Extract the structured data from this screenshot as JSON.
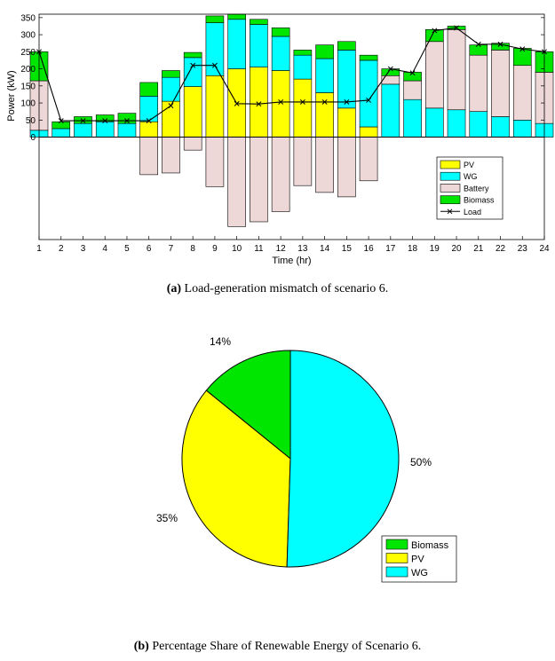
{
  "chart_data": [
    {
      "type": "bar",
      "subtype": "stacked-bar-with-line",
      "xlabel": "Time (hr)",
      "ylabel": "Power (kW)",
      "ylim": [
        -300,
        360
      ],
      "yticks": [
        0,
        50,
        100,
        150,
        200,
        250,
        300,
        350
      ],
      "categories": [
        "1",
        "2",
        "3",
        "4",
        "5",
        "6",
        "7",
        "8",
        "9",
        "10",
        "11",
        "12",
        "13",
        "14",
        "15",
        "16",
        "17",
        "18",
        "19",
        "20",
        "21",
        "22",
        "23",
        "24"
      ],
      "series": [
        {
          "name": "PV",
          "color": "#ffff00",
          "values": [
            0,
            0,
            0,
            0,
            0,
            45,
            105,
            148,
            180,
            200,
            205,
            195,
            170,
            130,
            85,
            30,
            0,
            0,
            0,
            0,
            0,
            0,
            0,
            0
          ]
        },
        {
          "name": "WG",
          "color": "#00ffff",
          "values": [
            20,
            25,
            40,
            45,
            40,
            75,
            70,
            85,
            155,
            145,
            125,
            100,
            70,
            100,
            170,
            195,
            155,
            110,
            85,
            80,
            75,
            60,
            50,
            40
          ]
        },
        {
          "name": "Battery",
          "color": "#eed7d7",
          "values": [
            145,
            0,
            0,
            0,
            0,
            -110,
            -105,
            -38,
            -145,
            -262,
            -248,
            -218,
            -142,
            -162,
            -175,
            -128,
            25,
            55,
            195,
            235,
            165,
            195,
            160,
            150
          ]
        },
        {
          "name": "Biomass",
          "color": "#00e600",
          "values": [
            85,
            20,
            20,
            20,
            30,
            40,
            20,
            15,
            20,
            15,
            15,
            25,
            15,
            40,
            25,
            15,
            20,
            25,
            35,
            10,
            30,
            20,
            50,
            60
          ]
        }
      ],
      "line": {
        "name": "Load",
        "values": [
          250,
          48,
          48,
          48,
          48,
          48,
          92,
          210,
          210,
          98,
          97,
          103,
          103,
          103,
          103,
          108,
          200,
          188,
          312,
          320,
          272,
          272,
          258,
          250
        ]
      },
      "legend": [
        "PV",
        "WG",
        "Battery",
        "Biomass",
        "Load"
      ],
      "legend_position": "lower-right",
      "caption_label": "(a)",
      "caption_text": "Load-generation mismatch of scenario 6."
    },
    {
      "type": "pie",
      "slices": [
        {
          "name": "Biomass",
          "value": 14,
          "label": "14%",
          "color": "#00e600"
        },
        {
          "name": "PV",
          "value": 35,
          "label": "35%",
          "color": "#ffff00"
        },
        {
          "name": "WG",
          "value": 50,
          "label": "50%",
          "color": "#00ffff"
        }
      ],
      "legend": [
        "Biomass",
        "PV",
        "WG"
      ],
      "legend_position": "lower-right",
      "caption_label": "(b)",
      "caption_text": "Percentage Share of Renewable Energy of Scenario 6."
    }
  ]
}
